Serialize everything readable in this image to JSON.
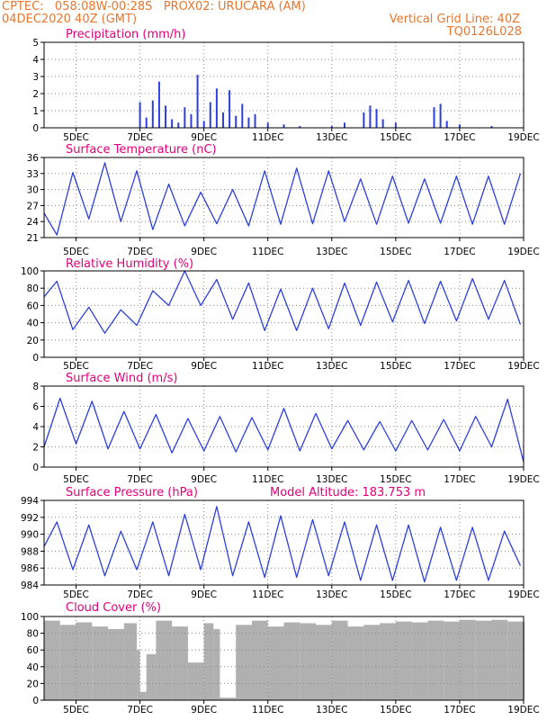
{
  "header": {
    "line1_left": "CPTEC:   058:08W-00:28S   PROX02: URUCARA (AM)",
    "line2_left": "04DEC2020 40Z (GMT)",
    "line2_right": "Vertical Grid Line: 40Z",
    "line3_right": "TQ0126L028"
  },
  "x_ticks": [
    "5DEC",
    "7DEC",
    "9DEC",
    "11DEC",
    "13DEC",
    "15DEC",
    "17DEC",
    "19DEC"
  ],
  "colors": {
    "title": "#e0007a",
    "header": "#e8762d",
    "line": "#2d3fdf",
    "bar": "#2d3fdf",
    "cloud": "#b0b0b0",
    "grid": "#888888"
  },
  "chart_data": [
    {
      "type": "bar",
      "title": "Precipitation (mm/h)",
      "ylim": [
        0,
        5
      ],
      "yticks": [
        "0",
        "1",
        "2",
        "3",
        "4",
        "5"
      ],
      "x": [
        7.0,
        7.2,
        7.4,
        7.6,
        7.8,
        8.0,
        8.2,
        8.4,
        8.6,
        8.8,
        9.0,
        9.2,
        9.4,
        9.6,
        9.8,
        10.0,
        10.2,
        10.4,
        10.6,
        11.0,
        11.5,
        12.0,
        13.0,
        13.4,
        14.0,
        14.2,
        14.4,
        14.6,
        15.0,
        16.2,
        16.4,
        16.6,
        17.0,
        18.0
      ],
      "values": [
        1.5,
        0.6,
        1.6,
        2.7,
        1.3,
        0.5,
        0.3,
        1.2,
        0.8,
        3.1,
        0.4,
        1.5,
        2.3,
        0.9,
        2.2,
        0.7,
        1.4,
        0.6,
        0.8,
        0.3,
        0.2,
        0.1,
        0.1,
        0.3,
        0.9,
        1.3,
        1.1,
        0.5,
        0.3,
        1.2,
        1.4,
        0.4,
        0.2,
        0.1
      ]
    },
    {
      "type": "line",
      "title": "Surface Temperature (nC)",
      "ylim": [
        21,
        36
      ],
      "yticks": [
        "21",
        "24",
        "27",
        "30",
        "33",
        "36"
      ],
      "x": [
        4.0,
        4.4,
        4.9,
        5.4,
        5.9,
        6.4,
        6.9,
        7.4,
        7.9,
        8.4,
        8.9,
        9.4,
        9.9,
        10.4,
        10.9,
        11.4,
        11.9,
        12.4,
        12.9,
        13.4,
        13.9,
        14.4,
        14.9,
        15.4,
        15.9,
        16.4,
        16.9,
        17.4,
        17.9,
        18.4,
        18.9
      ],
      "y": [
        25.6,
        21.5,
        33.2,
        24.5,
        35.0,
        24.0,
        33.5,
        22.5,
        31.0,
        23.2,
        29.5,
        23.6,
        30.0,
        23.2,
        33.5,
        23.5,
        34.0,
        23.6,
        33.5,
        24.0,
        32.0,
        23.5,
        32.5,
        23.7,
        32.0,
        23.7,
        32.5,
        23.5,
        32.5,
        23.5,
        33.0
      ]
    },
    {
      "type": "line",
      "title": "Relative Humidity (%)",
      "ylim": [
        0,
        100
      ],
      "yticks": [
        "0",
        "20",
        "40",
        "60",
        "80",
        "100"
      ],
      "x": [
        4.0,
        4.4,
        4.9,
        5.4,
        5.9,
        6.4,
        6.9,
        7.4,
        7.9,
        8.4,
        8.9,
        9.4,
        9.9,
        10.4,
        10.9,
        11.4,
        11.9,
        12.4,
        12.9,
        13.4,
        13.9,
        14.4,
        14.9,
        15.4,
        15.9,
        16.4,
        16.9,
        17.4,
        17.9,
        18.4,
        18.9
      ],
      "y": [
        70.0,
        88.0,
        32.0,
        58.0,
        28.0,
        55.0,
        37.0,
        77.0,
        60.0,
        100.0,
        60.0,
        90.0,
        44.0,
        86.0,
        31.0,
        79.0,
        31.0,
        80.0,
        33.0,
        86.0,
        37.0,
        87.0,
        41.0,
        89.0,
        39.0,
        88.0,
        42.0,
        91.0,
        44.0,
        89.0,
        38.0
      ]
    },
    {
      "type": "line",
      "title": "Surface Wind (m/s)",
      "ylim": [
        0,
        8
      ],
      "yticks": [
        "0",
        "2",
        "4",
        "6",
        "8"
      ],
      "x": [
        4.0,
        4.5,
        5.0,
        5.5,
        6.0,
        6.5,
        7.0,
        7.5,
        8.0,
        8.5,
        9.0,
        9.5,
        10.0,
        10.5,
        11.0,
        11.5,
        12.0,
        12.5,
        13.0,
        13.5,
        14.0,
        14.5,
        15.0,
        15.5,
        16.0,
        16.5,
        17.0,
        17.5,
        18.0,
        18.5,
        19.0
      ],
      "y": [
        2.0,
        6.8,
        2.3,
        6.5,
        1.8,
        5.5,
        1.8,
        5.2,
        1.4,
        4.8,
        1.6,
        5.0,
        1.5,
        4.9,
        1.7,
        5.8,
        1.6,
        5.3,
        1.8,
        4.6,
        1.7,
        4.5,
        1.6,
        4.6,
        1.7,
        4.7,
        1.6,
        5.0,
        2.0,
        6.7,
        0.5
      ]
    },
    {
      "type": "line",
      "title": "Surface Pressure (hPa)",
      "annotation": "Model Altitude: 183.753 m",
      "ylim": [
        983,
        994
      ],
      "yticks": [
        "984",
        "986",
        "988",
        "990",
        "992",
        "994"
      ],
      "x": [
        4.0,
        4.4,
        4.9,
        5.4,
        5.9,
        6.4,
        6.9,
        7.4,
        7.9,
        8.4,
        8.9,
        9.4,
        9.9,
        10.4,
        10.9,
        11.4,
        11.9,
        12.4,
        12.9,
        13.4,
        13.9,
        14.4,
        14.9,
        15.4,
        15.9,
        16.4,
        16.9,
        17.4,
        17.9,
        18.4,
        18.9
      ],
      "y": [
        988.0,
        991.2,
        985.0,
        990.8,
        984.2,
        990.0,
        985.0,
        991.2,
        984.2,
        992.2,
        985.0,
        993.2,
        984.2,
        991.2,
        984.0,
        992.0,
        984.0,
        991.5,
        984.2,
        991.2,
        983.6,
        990.8,
        983.6,
        990.8,
        983.4,
        990.5,
        983.6,
        990.5,
        983.6,
        990.0,
        985.5
      ]
    },
    {
      "type": "bar",
      "title": "Cloud Cover (%)",
      "ylim": [
        0,
        100
      ],
      "yticks": [
        "0",
        "20",
        "40",
        "60",
        "80",
        "100"
      ],
      "x": [
        4.0,
        4.5,
        5.0,
        5.5,
        6.0,
        6.5,
        6.9,
        7.0,
        7.2,
        7.5,
        8.0,
        8.5,
        9.0,
        9.3,
        9.5,
        10.0,
        10.5,
        11.0,
        11.5,
        12.0,
        12.5,
        13.0,
        13.5,
        14.0,
        14.5,
        15.0,
        15.5,
        16.0,
        16.5,
        17.0,
        17.5,
        18.0,
        18.5,
        19.0
      ],
      "values": [
        95,
        90,
        93,
        88,
        85,
        92,
        60,
        10,
        55,
        95,
        88,
        45,
        92,
        85,
        3,
        90,
        95,
        88,
        93,
        92,
        90,
        95,
        88,
        90,
        92,
        94,
        93,
        95,
        94,
        96,
        95,
        96,
        94,
        93
      ]
    }
  ]
}
